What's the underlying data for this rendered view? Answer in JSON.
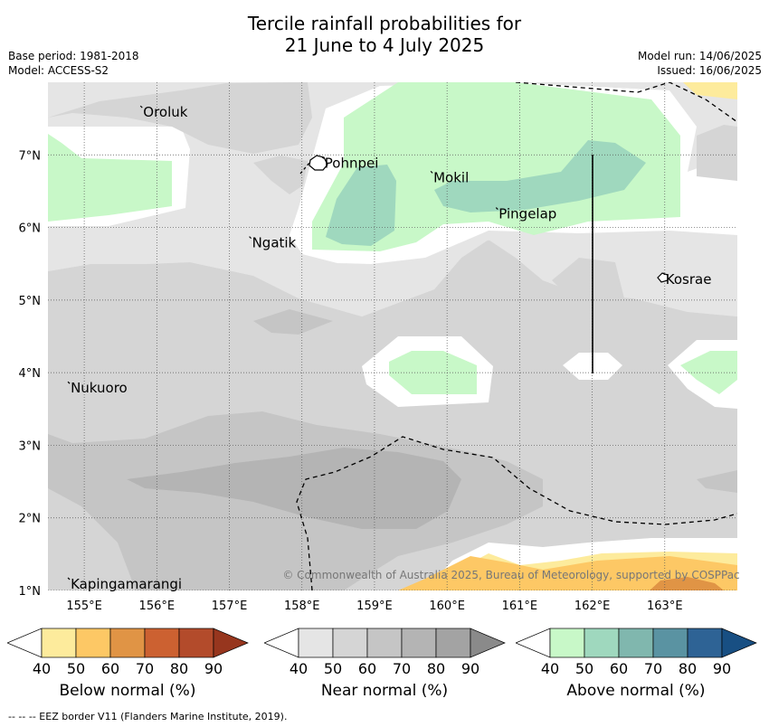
{
  "title_line1": "Tercile rainfall probabilities for",
  "title_line2": "21 June to 4 July 2025",
  "base_period": "Base period: 1981-2018",
  "model": "Model: ACCESS-S2",
  "model_run": "Model run: 14/06/2025",
  "issued": "Issued: 16/06/2025",
  "copyright": "© Commonwealth of Australia 2025, Bureau of Meteorology, supported by COSPPac",
  "footnote": "--  --  -- EEZ border V11 (Flanders Marine Institute, 2019).",
  "axes": {
    "lon_ticks": [
      "155°E",
      "156°E",
      "157°E",
      "158°E",
      "159°E",
      "160°E",
      "161°E",
      "162°E",
      "163°E"
    ],
    "lat_ticks": [
      "1°N",
      "2°N",
      "3°N",
      "4°N",
      "5°N",
      "6°N",
      "7°N"
    ],
    "lon_range": [
      154.5,
      164.0
    ],
    "lat_range": [
      1.0,
      8.0
    ]
  },
  "places": [
    {
      "name": "Oroluk",
      "lon": 155.8,
      "lat": 7.6
    },
    {
      "name": "Pohnpei",
      "lon": 158.3,
      "lat": 6.9
    },
    {
      "name": "Mokil",
      "lon": 159.8,
      "lat": 6.7
    },
    {
      "name": "Pingelap",
      "lon": 160.7,
      "lat": 6.2
    },
    {
      "name": "Ngatik",
      "lon": 157.3,
      "lat": 5.8
    },
    {
      "name": "Kosrae",
      "lon": 163.0,
      "lat": 5.3
    },
    {
      "name": "Nukuoro",
      "lon": 154.8,
      "lat": 3.8
    },
    {
      "name": "Kapingamarangi",
      "lon": 154.8,
      "lat": 1.1
    }
  ],
  "colorbars": [
    {
      "label": "Below normal (%)",
      "ticks": [
        "40",
        "50",
        "60",
        "70",
        "80",
        "90"
      ],
      "colors": [
        "#ffffff",
        "#fdeb9c",
        "#fdc865",
        "#e09445",
        "#cc6131",
        "#b34b2b",
        "#97361e"
      ]
    },
    {
      "label": "Near normal (%)",
      "ticks": [
        "40",
        "50",
        "60",
        "70",
        "80",
        "90"
      ],
      "colors": [
        "#ffffff",
        "#e5e5e5",
        "#d5d5d5",
        "#c5c5c5",
        "#b4b4b4",
        "#a3a3a3",
        "#8a8a8a"
      ]
    },
    {
      "label": "Above normal (%)",
      "ticks": [
        "40",
        "50",
        "60",
        "70",
        "80",
        "90"
      ],
      "colors": [
        "#ffffff",
        "#c8f8c8",
        "#9fd8be",
        "#80b7ae",
        "#5a93a2",
        "#2e6395",
        "#184f83"
      ]
    }
  ]
}
